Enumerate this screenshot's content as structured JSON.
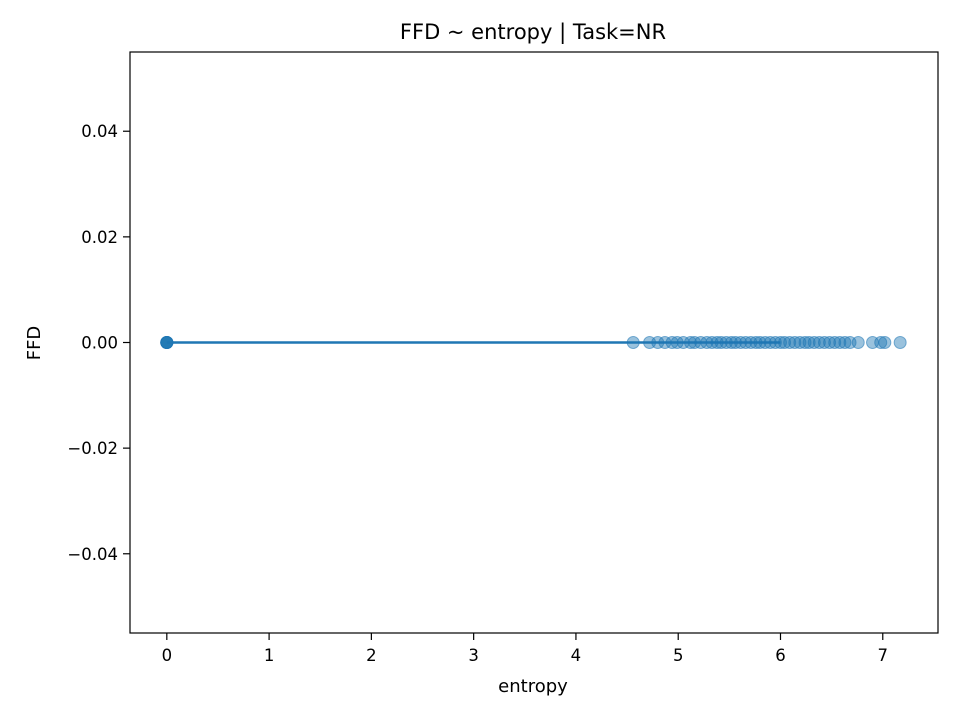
{
  "chart_data": {
    "type": "scatter",
    "title": "FFD ~ entropy | Task=NR",
    "xlabel": "entropy",
    "ylabel": "FFD",
    "xlim": [
      -0.36,
      7.54
    ],
    "ylim": [
      -0.055,
      0.055
    ],
    "xticks": [
      {
        "value": 0,
        "label": "0"
      },
      {
        "value": 1,
        "label": "1"
      },
      {
        "value": 2,
        "label": "2"
      },
      {
        "value": 3,
        "label": "3"
      },
      {
        "value": 4,
        "label": "4"
      },
      {
        "value": 5,
        "label": "5"
      },
      {
        "value": 6,
        "label": "6"
      },
      {
        "value": 7,
        "label": "7"
      }
    ],
    "yticks": [
      {
        "value": -0.04,
        "label": "−0.04"
      },
      {
        "value": -0.02,
        "label": "−0.02"
      },
      {
        "value": 0.0,
        "label": "0.00"
      },
      {
        "value": 0.02,
        "label": "0.02"
      },
      {
        "value": 0.04,
        "label": "0.04"
      }
    ],
    "grid": false,
    "colors": {
      "marker": "#1f77b4",
      "line": "#1f77b4",
      "axes": "#000000"
    },
    "series": [
      {
        "kind": "points",
        "x": [
          0,
          0,
          0,
          0,
          0,
          0,
          4.56,
          4.72,
          4.8,
          4.87,
          4.94,
          4.99,
          5.05,
          5.12,
          5.16,
          5.22,
          5.28,
          5.33,
          5.38,
          5.42,
          5.47,
          5.52,
          5.56,
          5.61,
          5.66,
          5.71,
          5.76,
          5.8,
          5.85,
          5.9,
          5.95,
          6.0,
          6.04,
          6.09,
          6.14,
          6.19,
          6.24,
          6.28,
          6.33,
          6.38,
          6.43,
          6.48,
          6.53,
          6.58,
          6.63,
          6.68,
          6.76,
          6.9,
          6.98,
          7.02,
          7.17
        ],
        "y": [
          0,
          0,
          0,
          0,
          0,
          0,
          0,
          0,
          0,
          0,
          0,
          0,
          0,
          0,
          0,
          0,
          0,
          0,
          0,
          0,
          0,
          0,
          0,
          0,
          0,
          0,
          0,
          0,
          0,
          0,
          0,
          0,
          0,
          0,
          0,
          0,
          0,
          0,
          0,
          0,
          0,
          0,
          0,
          0,
          0,
          0,
          0,
          0,
          0,
          0,
          0
        ]
      },
      {
        "kind": "fit-line",
        "x": [
          0,
          6.0
        ],
        "y": [
          0,
          0
        ]
      }
    ]
  }
}
